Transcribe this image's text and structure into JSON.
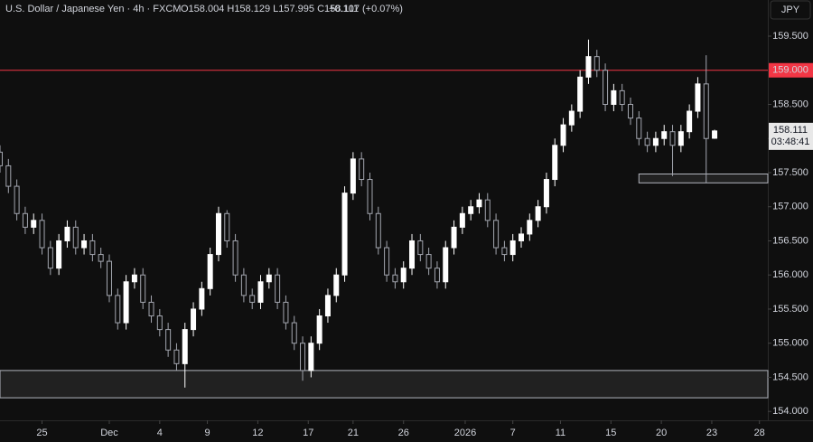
{
  "chart_data": {
    "type": "candlestick",
    "header": "U.S. Dollar / Japanese Yen · 4h · FXCM",
    "header_ohlc": "O158.004 H158.129 L157.995 C158.111",
    "header_change": "+0.107 (+0.07%)",
    "currency": "JPY",
    "up_color": "#ffffff",
    "down_color": "#a3a6af",
    "x": [
      0,
      3,
      6,
      9,
      12,
      15,
      18,
      21,
      24,
      27,
      30,
      33,
      36,
      39,
      42,
      45,
      48,
      51,
      54,
      57,
      60,
      63,
      66,
      69,
      72,
      75,
      78,
      81,
      84,
      87,
      90,
      93,
      96,
      99,
      102,
      105,
      108,
      111,
      114,
      117,
      120,
      123,
      126,
      129,
      132,
      135,
      138,
      141,
      144,
      147,
      150,
      153,
      156,
      159,
      162,
      165,
      168,
      171,
      174,
      177,
      180,
      183,
      186,
      189,
      192,
      195,
      198,
      201,
      204,
      207,
      210,
      213,
      216,
      219,
      222,
      225,
      228,
      231,
      234,
      237,
      240,
      243,
      246,
      249,
      252,
      255
    ],
    "open": [
      157.8,
      157.6,
      157.3,
      156.9,
      156.7,
      156.8,
      156.4,
      156.1,
      156.5,
      156.7,
      156.4,
      156.5,
      156.3,
      156.2,
      155.7,
      155.3,
      155.9,
      156.0,
      155.6,
      155.4,
      155.2,
      154.9,
      154.7,
      155.2,
      155.5,
      155.8,
      156.3,
      156.9,
      156.5,
      156.0,
      155.7,
      155.6,
      155.9,
      156.0,
      155.6,
      155.3,
      155.0,
      154.6,
      155.0,
      155.4,
      155.7,
      156.0,
      157.2,
      157.7,
      157.4,
      156.9,
      156.4,
      156.0,
      155.9,
      156.1,
      156.5,
      156.3,
      156.1,
      155.9,
      156.4,
      156.7,
      156.9,
      157.0,
      157.1,
      156.8,
      156.4,
      156.3,
      156.5,
      156.6,
      156.8,
      157.0,
      157.4,
      157.9,
      158.2,
      158.4,
      158.9,
      159.2,
      159.0,
      158.5,
      158.7,
      158.5,
      158.3,
      158.0,
      157.9,
      158.0,
      158.1,
      157.9,
      158.1,
      158.4,
      158.8,
      158.004
    ],
    "high": [
      157.9,
      157.7,
      157.4,
      157.0,
      156.9,
      156.9,
      156.5,
      156.6,
      156.8,
      156.8,
      156.6,
      156.6,
      156.4,
      156.3,
      155.8,
      156.0,
      156.1,
      156.1,
      155.7,
      155.5,
      155.3,
      155.0,
      155.3,
      155.6,
      155.9,
      156.4,
      157.0,
      156.95,
      156.6,
      156.1,
      155.8,
      156.0,
      156.1,
      156.1,
      155.7,
      155.4,
      155.1,
      155.1,
      155.5,
      155.8,
      156.1,
      157.3,
      157.8,
      157.8,
      157.5,
      157.0,
      156.5,
      156.1,
      156.2,
      156.6,
      156.6,
      156.4,
      156.2,
      156.5,
      156.8,
      157.0,
      157.1,
      157.2,
      157.2,
      156.9,
      156.5,
      156.6,
      156.7,
      156.9,
      157.1,
      157.5,
      158.0,
      158.3,
      158.5,
      159.0,
      159.45,
      159.3,
      159.1,
      158.8,
      158.8,
      158.6,
      158.4,
      158.1,
      158.1,
      158.2,
      158.2,
      158.2,
      158.5,
      158.9,
      159.22,
      158.129
    ],
    "low": [
      157.5,
      157.2,
      156.8,
      156.6,
      156.6,
      156.3,
      156.0,
      156.0,
      156.4,
      156.3,
      156.3,
      156.2,
      156.1,
      155.6,
      155.2,
      155.2,
      155.8,
      155.5,
      155.3,
      155.1,
      154.8,
      154.6,
      154.35,
      155.1,
      155.4,
      155.7,
      156.2,
      156.4,
      155.9,
      155.6,
      155.5,
      155.5,
      155.8,
      155.5,
      155.2,
      154.9,
      154.45,
      154.5,
      154.9,
      155.3,
      155.6,
      155.9,
      157.1,
      157.3,
      156.8,
      156.3,
      155.9,
      155.8,
      155.8,
      156.0,
      156.2,
      156.0,
      155.8,
      155.8,
      156.3,
      156.6,
      156.8,
      156.9,
      156.7,
      156.3,
      156.2,
      156.2,
      156.4,
      156.5,
      156.7,
      156.9,
      157.3,
      157.8,
      158.1,
      158.3,
      158.8,
      158.9,
      158.4,
      158.4,
      158.4,
      158.2,
      157.9,
      157.8,
      157.8,
      157.9,
      157.45,
      157.8,
      158.0,
      158.3,
      157.35,
      157.995
    ],
    "close": [
      157.6,
      157.3,
      156.9,
      156.7,
      156.8,
      156.4,
      156.1,
      156.5,
      156.7,
      156.4,
      156.5,
      156.3,
      156.2,
      155.7,
      155.3,
      155.9,
      156.0,
      155.6,
      155.4,
      155.2,
      154.9,
      154.7,
      155.2,
      155.5,
      155.8,
      156.3,
      156.9,
      156.5,
      156.0,
      155.7,
      155.6,
      155.9,
      156.0,
      155.6,
      155.3,
      155.0,
      154.6,
      155.0,
      155.4,
      155.7,
      156.0,
      157.2,
      157.7,
      157.4,
      156.9,
      156.4,
      156.0,
      155.9,
      156.1,
      156.5,
      156.3,
      156.1,
      155.9,
      156.4,
      156.7,
      156.9,
      157.0,
      157.1,
      156.8,
      156.4,
      156.3,
      156.5,
      156.6,
      156.8,
      157.0,
      157.4,
      157.9,
      158.2,
      158.4,
      158.9,
      159.2,
      159.0,
      158.5,
      158.7,
      158.5,
      158.3,
      158.0,
      157.9,
      158.0,
      158.1,
      157.9,
      158.1,
      158.4,
      158.8,
      158.0,
      158.111
    ],
    "xlim": [
      0,
      274
    ],
    "xticks": [
      {
        "value": 15,
        "label": "25"
      },
      {
        "value": 39,
        "label": "Dec"
      },
      {
        "value": 57,
        "label": "4"
      },
      {
        "value": 74,
        "label": "9"
      },
      {
        "value": 92,
        "label": "12"
      },
      {
        "value": 110,
        "label": "17"
      },
      {
        "value": 126,
        "label": "21"
      },
      {
        "value": 144,
        "label": "26"
      },
      {
        "value": 166,
        "label": "2026"
      },
      {
        "value": 183,
        "label": "7"
      },
      {
        "value": 200,
        "label": "11"
      },
      {
        "value": 218,
        "label": "15"
      },
      {
        "value": 236,
        "label": "20"
      },
      {
        "value": 254,
        "label": "23"
      },
      {
        "value": 271,
        "label": "28"
      }
    ],
    "ylim": [
      153.87,
      160.03
    ],
    "yticks": [
      {
        "value": 154.0,
        "label": "154.000"
      },
      {
        "value": 154.5,
        "label": "154.500"
      },
      {
        "value": 155.0,
        "label": "155.000"
      },
      {
        "value": 155.5,
        "label": "155.500"
      },
      {
        "value": 156.0,
        "label": "156.000"
      },
      {
        "value": 156.5,
        "label": "156.500"
      },
      {
        "value": 157.0,
        "label": "157.000"
      },
      {
        "value": 157.5,
        "label": "157.500"
      },
      {
        "value": 158.0,
        "label": "158.000"
      },
      {
        "value": 158.5,
        "label": "158.500"
      },
      {
        "value": 159.5,
        "label": "159.500"
      }
    ],
    "level": {
      "value": 159.0,
      "label": "159.000",
      "color": "#f23645"
    },
    "last_price": {
      "value": 158.111,
      "label": "158.111",
      "countdown": "03:48:41"
    },
    "zones": [
      {
        "low": 154.2,
        "high": 154.6,
        "x_start": 0
      },
      {
        "low": 157.35,
        "high": 157.48,
        "x_start": 228
      }
    ]
  }
}
